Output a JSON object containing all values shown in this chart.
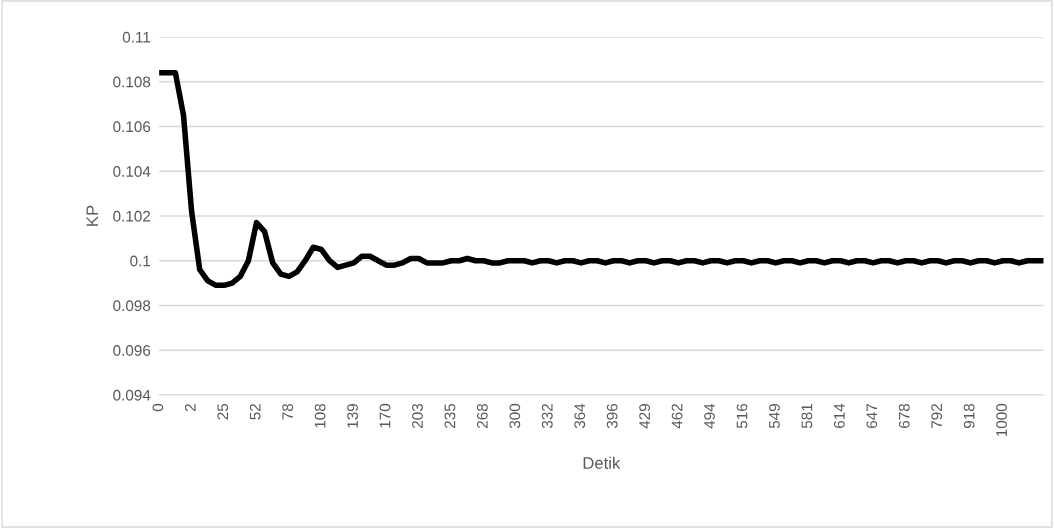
{
  "chart_data": {
    "type": "line",
    "xlabel": "Detik",
    "ylabel": "KP",
    "categories": [
      "0",
      null,
      null,
      null,
      "2",
      null,
      null,
      null,
      "25",
      null,
      null,
      null,
      "52",
      null,
      null,
      null,
      "78",
      null,
      null,
      null,
      "108",
      null,
      null,
      null,
      "139",
      null,
      null,
      null,
      "170",
      null,
      null,
      null,
      "203",
      null,
      null,
      null,
      "235",
      null,
      null,
      null,
      "268",
      null,
      null,
      null,
      "300",
      null,
      null,
      null,
      "332",
      null,
      null,
      null,
      "364",
      null,
      null,
      null,
      "396",
      null,
      null,
      null,
      "429",
      null,
      null,
      null,
      "462",
      null,
      null,
      null,
      "494",
      null,
      null,
      null,
      "516",
      null,
      null,
      null,
      "549",
      null,
      null,
      null,
      "581",
      null,
      null,
      null,
      "614",
      null,
      null,
      null,
      "647",
      null,
      null,
      null,
      "678",
      null,
      null,
      null,
      "792",
      null,
      null,
      null,
      "918",
      null,
      null,
      null,
      "1000",
      null,
      null,
      null,
      null,
      null
    ],
    "series": [
      {
        "color": "#000000",
        "values": [
          0.1084,
          0.1084,
          0.1084,
          0.1065,
          0.1022,
          0.0996,
          0.0991,
          0.0989,
          0.0989,
          0.099,
          0.0993,
          0.1,
          0.1017,
          0.1013,
          0.0999,
          0.0994,
          0.0993,
          0.0995,
          0.1,
          0.1006,
          0.1005,
          0.1,
          0.0997,
          0.0998,
          0.0999,
          0.1002,
          0.1002,
          0.1,
          0.0998,
          0.0998,
          0.0999,
          0.1001,
          0.1001,
          0.0999,
          0.0999,
          0.0999,
          0.1,
          0.1,
          0.1001,
          0.1,
          0.1,
          0.0999,
          0.0999,
          0.1,
          0.1,
          0.1,
          0.0999,
          0.1,
          0.1,
          0.0999,
          0.1,
          0.1,
          0.0999,
          0.1,
          0.1,
          0.0999,
          0.1,
          0.1,
          0.0999,
          0.1,
          0.1,
          0.0999,
          0.1,
          0.1,
          0.0999,
          0.1,
          0.1,
          0.0999,
          0.1,
          0.1,
          0.0999,
          0.1,
          0.1,
          0.0999,
          0.1,
          0.1,
          0.0999,
          0.1,
          0.1,
          0.0999,
          0.1,
          0.1,
          0.0999,
          0.1,
          0.1,
          0.0999,
          0.1,
          0.1,
          0.0999,
          0.1,
          0.1,
          0.0999,
          0.1,
          0.1,
          0.0999,
          0.1,
          0.1,
          0.0999,
          0.1,
          0.1,
          0.0999,
          0.1,
          0.1,
          0.0999,
          0.1,
          0.1,
          0.0999,
          0.1,
          0.1,
          0.1
        ]
      }
    ],
    "ylim": [
      0.094,
      0.11
    ],
    "yticks": [
      0.094,
      0.096,
      0.098,
      0.1,
      0.102,
      0.104,
      0.106,
      0.108,
      0.11
    ],
    "grid": "y",
    "marker": "none",
    "line_style": "solid"
  }
}
